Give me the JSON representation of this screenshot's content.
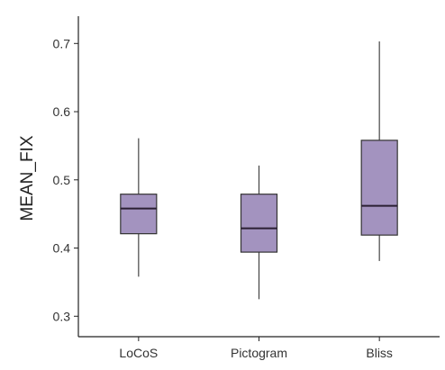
{
  "chart_data": {
    "type": "box",
    "title": "",
    "xlabel": "",
    "ylabel": "MEAN_FIX",
    "ylim": [
      0.27,
      0.74
    ],
    "y_ticks": [
      0.3,
      0.4,
      0.5,
      0.6,
      0.7
    ],
    "y_tick_labels": [
      "0.3",
      "0.4",
      "0.5",
      "0.6",
      "0.7"
    ],
    "categories": [
      "LoCoS",
      "Pictogram",
      "Bliss"
    ],
    "boxes": [
      {
        "category": "LoCoS",
        "whisker_low": 0.358,
        "q1": 0.421,
        "median": 0.458,
        "q3": 0.479,
        "whisker_high": 0.561
      },
      {
        "category": "Pictogram",
        "whisker_low": 0.325,
        "q1": 0.394,
        "median": 0.429,
        "q3": 0.479,
        "whisker_high": 0.521
      },
      {
        "category": "Bliss",
        "whisker_low": 0.381,
        "q1": 0.419,
        "median": 0.462,
        "q3": 0.558,
        "whisker_high": 0.703
      }
    ],
    "grid": false,
    "legend": "none",
    "colors": {
      "box_fill": "#a393bf",
      "box_stroke": "#333333",
      "median_line": "#2a1f33",
      "whisker": "#444444",
      "axis": "#222222"
    }
  }
}
